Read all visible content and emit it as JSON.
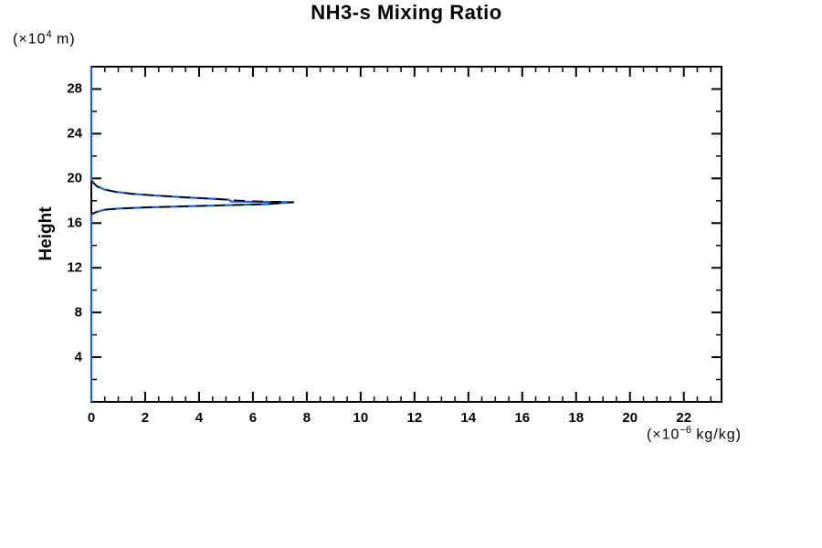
{
  "title": "NH3-s Mixing Ratio",
  "labels": {
    "y_unit_prefix": "(×10",
    "y_unit_sup": "4",
    "y_unit_suffix": " m)",
    "x_unit_prefix": "(×10",
    "x_unit_sup": "−6",
    "x_unit_suffix": " kg/kg)"
  },
  "colors": {
    "line_blue": "#1d5fd6",
    "axis_black": "#000000",
    "background": "#ffffff"
  },
  "chart_data": {
    "type": "line",
    "title": "NH3-s Mixing Ratio",
    "ylabel": "Height",
    "ylabel_unit": "(×10⁴ m)",
    "xlabel": "",
    "xlabel_unit": "(×10⁻⁶ kg/kg)",
    "xlim": [
      0,
      23.4
    ],
    "ylim": [
      0,
      30
    ],
    "grid": false,
    "legend": "none",
    "x_major_ticks": [
      0,
      2,
      4,
      6,
      8,
      10,
      12,
      14,
      16,
      18,
      20,
      22
    ],
    "x_minor_step": 0.5,
    "y_major_ticks": [
      4,
      8,
      12,
      16,
      20,
      24,
      28
    ],
    "y_minor_step": 2,
    "peak": {
      "value": 7.5,
      "height": 18
    },
    "series": [
      {
        "name": "NH3-s mixing ratio profile (solid blue)",
        "color": "#1d5fd6",
        "style": "solid",
        "points": [
          [
            0,
            30
          ],
          [
            0,
            19.8
          ],
          [
            0.2,
            19.3
          ],
          [
            0.5,
            19.0
          ],
          [
            0.9,
            18.8
          ],
          [
            1.5,
            18.62
          ],
          [
            2.5,
            18.45
          ],
          [
            3.5,
            18.3
          ],
          [
            4.5,
            18.18
          ],
          [
            5.1,
            18.1
          ],
          [
            5.2,
            17.93
          ],
          [
            6.2,
            17.9
          ],
          [
            7.5,
            17.87
          ],
          [
            6.5,
            17.7
          ],
          [
            5.0,
            17.6
          ],
          [
            3.5,
            17.5
          ],
          [
            2.0,
            17.4
          ],
          [
            1.0,
            17.3
          ],
          [
            0.5,
            17.2
          ],
          [
            0.2,
            17.0
          ],
          [
            0,
            16.8
          ],
          [
            0,
            0
          ]
        ]
      },
      {
        "name": "NH3-s mixing ratio profile (black dashed overlay)",
        "color": "#000000",
        "style": "dashed",
        "points": [
          [
            0,
            19.8
          ],
          [
            0.2,
            19.3
          ],
          [
            0.5,
            19.0
          ],
          [
            0.9,
            18.8
          ],
          [
            1.5,
            18.62
          ],
          [
            2.5,
            18.45
          ],
          [
            3.5,
            18.3
          ],
          [
            4.5,
            18.18
          ],
          [
            5.5,
            18.02
          ],
          [
            6.5,
            17.93
          ],
          [
            7.5,
            17.87
          ],
          [
            6.5,
            17.7
          ],
          [
            5.0,
            17.6
          ],
          [
            3.5,
            17.5
          ],
          [
            2.0,
            17.4
          ],
          [
            1.0,
            17.3
          ],
          [
            0.5,
            17.2
          ],
          [
            0.2,
            17.0
          ],
          [
            0,
            16.8
          ]
        ]
      }
    ]
  }
}
